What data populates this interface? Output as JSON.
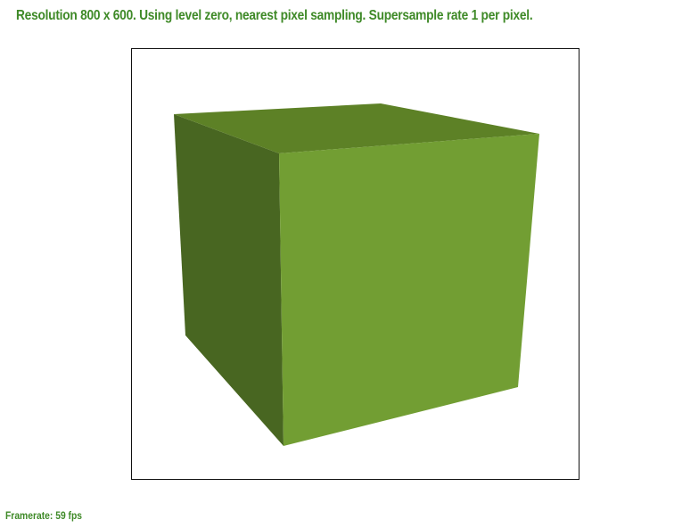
{
  "header": {
    "status_text": "Resolution 800 x 600. Using level zero, nearest pixel sampling. Supersample rate 1 per pixel."
  },
  "footer": {
    "framerate_text": "Framerate: 59 fps"
  },
  "colors": {
    "text": "#3f8a28",
    "cube_front": "#729e33",
    "cube_top": "#5d8126",
    "cube_left": "#486621",
    "viewport_border": "#111111"
  }
}
